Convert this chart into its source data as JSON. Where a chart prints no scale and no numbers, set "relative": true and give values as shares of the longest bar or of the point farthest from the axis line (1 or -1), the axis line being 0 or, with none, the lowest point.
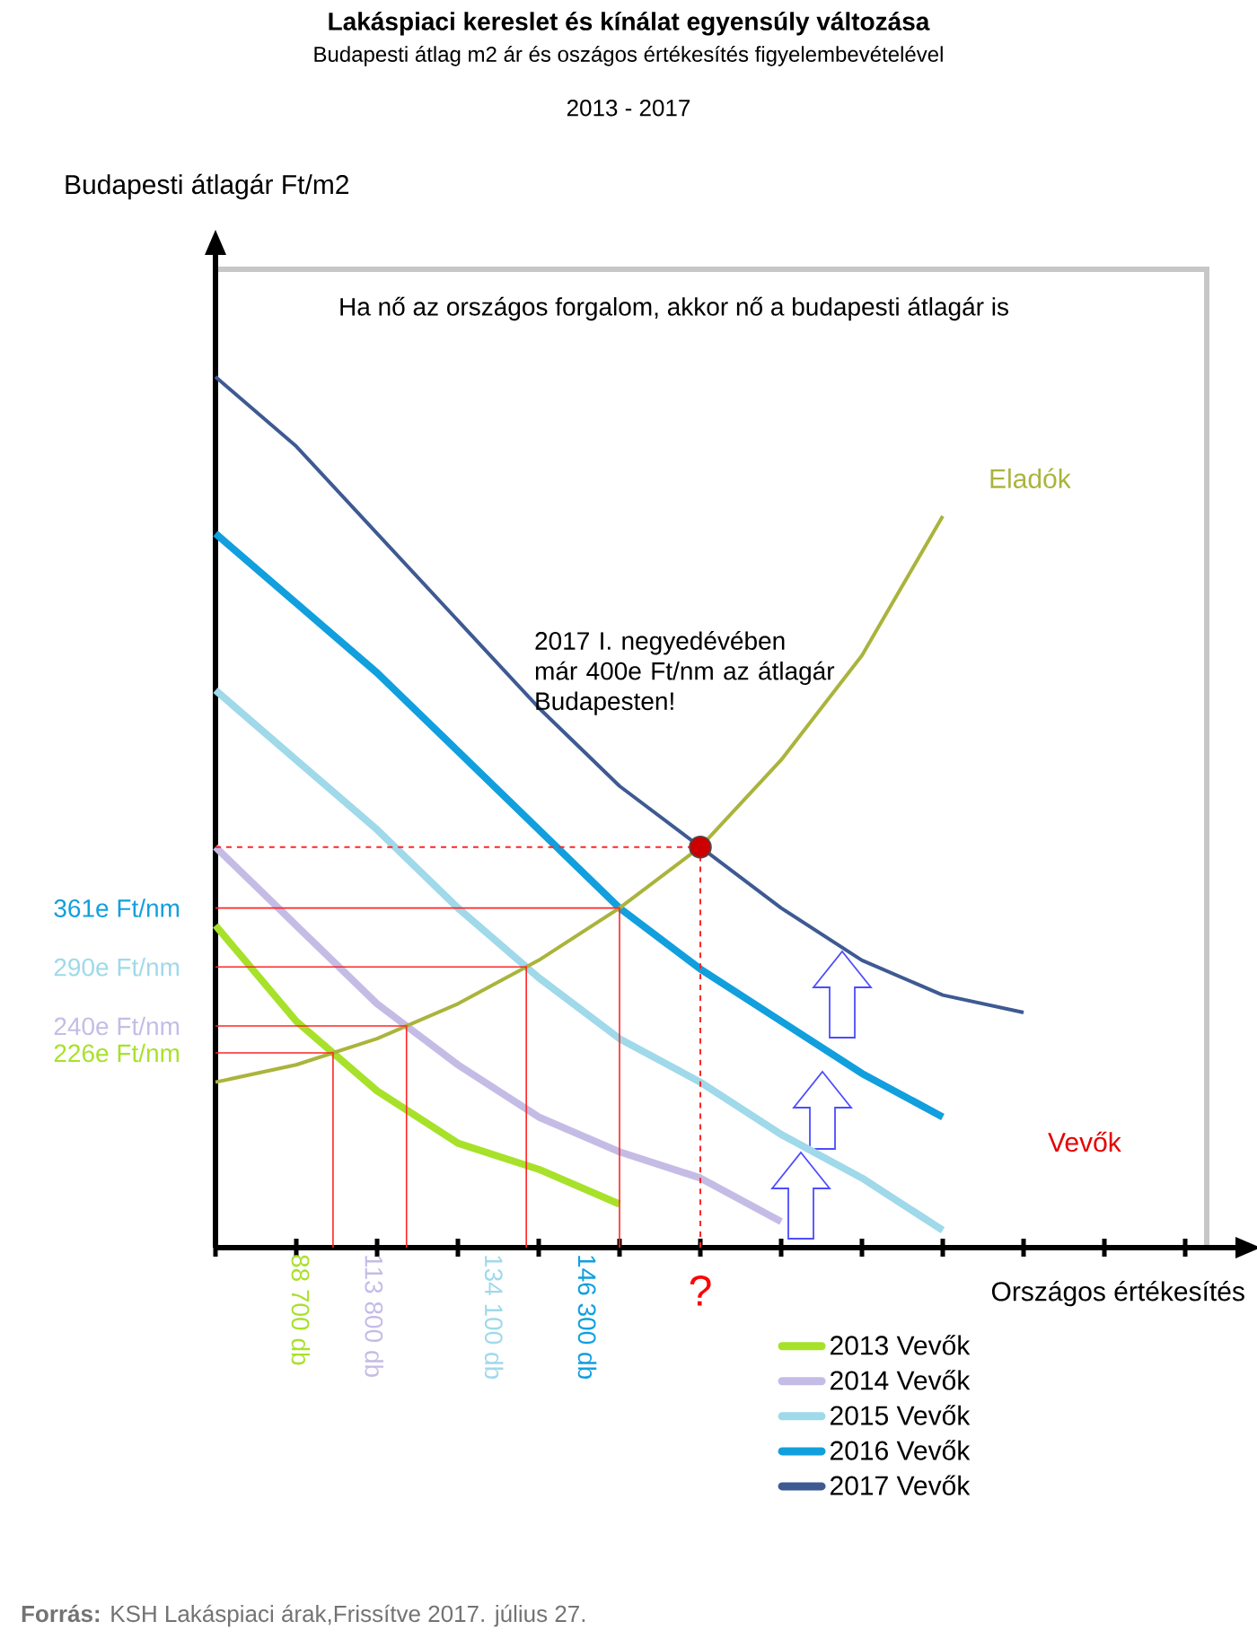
{
  "chart_data": {
    "type": "line",
    "relative": true,
    "title": "Lakáspiaci kereslet és kínálat egyensúly változása",
    "subtitle": "Budapesti átlag m2 ár és oszágos értékesítés figyelembevételével",
    "xlabel": "Országos értékesítés",
    "categories": [
      null,
      null,
      null,
      null,
      null,
      null,
      null,
      null,
      null,
      null,
      null,
      null,
      null
    ],
    "legend": "bottom right",
    "line_style": "solid",
    "series": [
      {
        "name": "2013 Vevők",
        "color": "#a8e12a",
        "values": [
          0.37,
          0.26,
          0.18,
          0.12,
          0.09,
          0.05,
          null,
          null,
          null,
          null,
          null,
          null,
          null
        ]
      },
      {
        "name": "2014 Vevők",
        "color": "#c5bce6",
        "values": [
          0.46,
          0.37,
          0.28,
          0.21,
          0.15,
          0.11,
          0.08,
          0.03,
          null,
          null,
          null,
          null,
          null
        ]
      },
      {
        "name": "2015 Vevők",
        "color": "#9fd9ea",
        "values": [
          0.64,
          0.56,
          0.48,
          0.39,
          0.31,
          0.24,
          0.19,
          0.13,
          0.08,
          0.02,
          null,
          null,
          null
        ]
      },
      {
        "name": "2016 Vevők",
        "color": "#119fde",
        "values": [
          0.82,
          0.74,
          0.66,
          0.57,
          0.48,
          0.39,
          0.32,
          0.26,
          0.2,
          0.15,
          null,
          null,
          null
        ]
      },
      {
        "name": "2017 Vevők",
        "color": "#3e5a92",
        "values": [
          1.0,
          0.92,
          0.82,
          0.72,
          0.62,
          0.53,
          0.46,
          0.39,
          0.33,
          0.29,
          0.27,
          null,
          null
        ]
      },
      {
        "name": "Eladók",
        "color": "#aab43c",
        "values": [
          0.19,
          0.21,
          0.24,
          0.28,
          0.33,
          0.39,
          0.46,
          0.56,
          0.68,
          0.84,
          null,
          null,
          null
        ]
      }
    ],
    "annotations": [
      "Ha nő az országos forgalom, akkor nő a budapesti átlagár is",
      "2017 I. negyedévében már 400e Ft/nm az átlagár Budapesten!",
      "Vevők",
      "?",
      "2013 - 2017",
      "226e Ft/nm",
      "240e Ft/nm",
      "290e Ft/nm",
      "361e Ft/nm",
      "88 700 db",
      "113 800 db",
      "134 100 db",
      "146 300 db",
      "Budapesti átlagár Ft/m2",
      "**Forrás:** KSH Lakáspiaci árak,Frissítve 2017. július 27."
    ]
  }
}
